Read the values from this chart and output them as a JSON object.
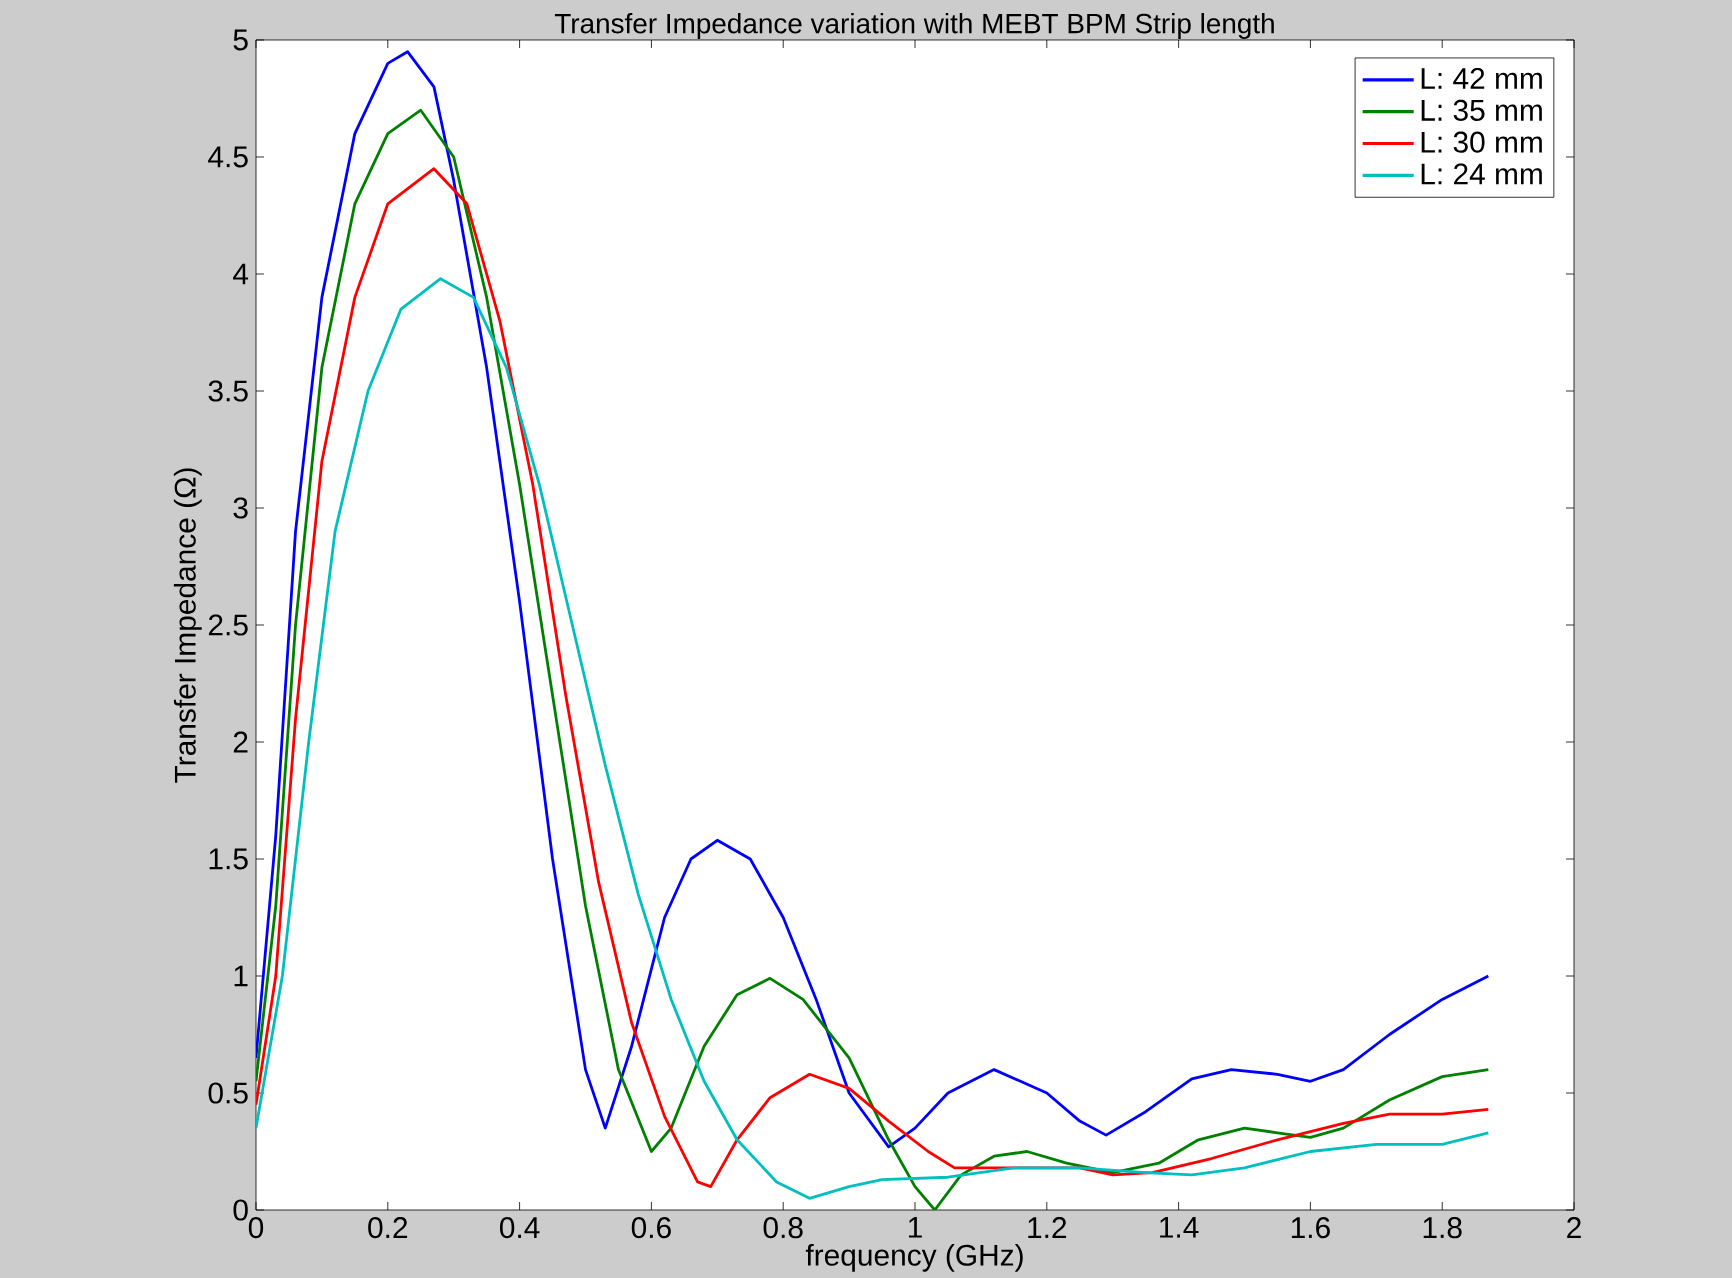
{
  "chart_data": {
    "type": "line",
    "title": "Transfer Impedance variation with MEBT BPM Strip length",
    "xlabel": "frequency (GHz)",
    "ylabel": "Transfer Impedance (Ω)",
    "xlim": [
      0,
      2
    ],
    "ylim": [
      0,
      5
    ],
    "xticks": [
      0,
      0.2,
      0.4,
      0.6,
      0.8,
      1,
      1.2,
      1.4,
      1.6,
      1.8,
      2
    ],
    "yticks": [
      0,
      0.5,
      1,
      1.5,
      2,
      2.5,
      3,
      3.5,
      4,
      4.5,
      5
    ],
    "grid": false,
    "legend": "top right",
    "marker": "none",
    "line_style": "solid",
    "series": [
      {
        "name": "L: 42 mm",
        "color": "#0000ff",
        "x": [
          0,
          0.03,
          0.06,
          0.1,
          0.15,
          0.2,
          0.23,
          0.27,
          0.3,
          0.35,
          0.4,
          0.45,
          0.5,
          0.53,
          0.57,
          0.62,
          0.66,
          0.7,
          0.75,
          0.8,
          0.85,
          0.9,
          0.96,
          1.0,
          1.05,
          1.12,
          1.2,
          1.25,
          1.29,
          1.35,
          1.42,
          1.48,
          1.55,
          1.6,
          1.65,
          1.72,
          1.8,
          1.87
        ],
        "values": [
          0.65,
          1.6,
          2.9,
          3.9,
          4.6,
          4.9,
          4.95,
          4.8,
          4.4,
          3.6,
          2.6,
          1.5,
          0.6,
          0.35,
          0.7,
          1.25,
          1.5,
          1.58,
          1.5,
          1.25,
          0.9,
          0.5,
          0.27,
          0.35,
          0.5,
          0.6,
          0.5,
          0.38,
          0.32,
          0.42,
          0.56,
          0.6,
          0.58,
          0.55,
          0.6,
          0.75,
          0.9,
          1.0
        ]
      },
      {
        "name": "L: 35 mm",
        "color": "#008000",
        "x": [
          0,
          0.03,
          0.06,
          0.1,
          0.15,
          0.2,
          0.25,
          0.3,
          0.35,
          0.4,
          0.45,
          0.5,
          0.55,
          0.6,
          0.63,
          0.68,
          0.73,
          0.78,
          0.83,
          0.9,
          0.96,
          1.0,
          1.03,
          1.07,
          1.12,
          1.17,
          1.23,
          1.3,
          1.37,
          1.43,
          1.5,
          1.55,
          1.6,
          1.65,
          1.72,
          1.8,
          1.87
        ],
        "values": [
          0.55,
          1.3,
          2.5,
          3.6,
          4.3,
          4.6,
          4.7,
          4.5,
          3.9,
          3.1,
          2.2,
          1.3,
          0.6,
          0.25,
          0.35,
          0.7,
          0.92,
          0.99,
          0.9,
          0.65,
          0.3,
          0.1,
          0.0,
          0.15,
          0.23,
          0.25,
          0.2,
          0.16,
          0.2,
          0.3,
          0.35,
          0.33,
          0.31,
          0.35,
          0.47,
          0.57,
          0.6
        ]
      },
      {
        "name": "L: 30 mm",
        "color": "#ff0000",
        "x": [
          0,
          0.03,
          0.06,
          0.1,
          0.15,
          0.2,
          0.27,
          0.32,
          0.37,
          0.42,
          0.47,
          0.52,
          0.57,
          0.62,
          0.67,
          0.69,
          0.73,
          0.78,
          0.84,
          0.9,
          0.96,
          1.02,
          1.06,
          1.15,
          1.25,
          1.3,
          1.36,
          1.45,
          1.55,
          1.65,
          1.72,
          1.8,
          1.87
        ],
        "values": [
          0.45,
          1.0,
          2.1,
          3.2,
          3.9,
          4.3,
          4.45,
          4.3,
          3.8,
          3.1,
          2.2,
          1.4,
          0.8,
          0.4,
          0.12,
          0.1,
          0.3,
          0.48,
          0.58,
          0.52,
          0.38,
          0.25,
          0.18,
          0.18,
          0.18,
          0.15,
          0.16,
          0.22,
          0.3,
          0.37,
          0.41,
          0.41,
          0.43
        ]
      },
      {
        "name": "L: 24 mm",
        "color": "#00bfbf",
        "x": [
          0,
          0.04,
          0.08,
          0.12,
          0.17,
          0.22,
          0.28,
          0.33,
          0.38,
          0.43,
          0.48,
          0.53,
          0.58,
          0.63,
          0.68,
          0.73,
          0.79,
          0.84,
          0.9,
          0.95,
          1.05,
          1.15,
          1.25,
          1.35,
          1.42,
          1.5,
          1.6,
          1.7,
          1.8,
          1.87
        ],
        "values": [
          0.35,
          1.0,
          2.0,
          2.9,
          3.5,
          3.85,
          3.98,
          3.9,
          3.6,
          3.1,
          2.5,
          1.9,
          1.35,
          0.9,
          0.55,
          0.3,
          0.12,
          0.05,
          0.1,
          0.13,
          0.14,
          0.18,
          0.18,
          0.16,
          0.15,
          0.18,
          0.25,
          0.28,
          0.28,
          0.33
        ]
      }
    ]
  }
}
